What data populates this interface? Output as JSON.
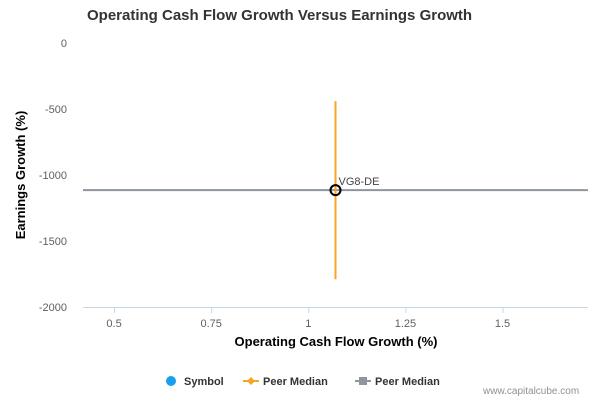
{
  "chart_data": {
    "type": "scatter",
    "title": "Operating Cash Flow Growth Versus Earnings Growth",
    "xlabel": "Operating Cash Flow Growth (%)",
    "ylabel": "Earnings Growth (%)",
    "xlim": [
      0.42,
      1.72
    ],
    "ylim": [
      -2000,
      0
    ],
    "x_ticks": [
      0.5,
      0.75,
      1,
      1.25,
      1.5
    ],
    "x_tick_labels": [
      "0.5",
      "0.75",
      "1",
      "1.25",
      "1.5"
    ],
    "y_ticks": [
      0,
      -500,
      -1000,
      -1500,
      -2000
    ],
    "y_tick_labels": [
      "0",
      "-500",
      "-1000",
      "-1500",
      "-2000"
    ],
    "grid": false,
    "legend_position": "bottom",
    "points": [
      {
        "label": "VG8-DE",
        "x": 1.07,
        "y": -1115
      }
    ],
    "peer_median_x": {
      "value": 1.07,
      "y_range": [
        -1790,
        -440
      ]
    },
    "peer_median_y": {
      "value": -1115,
      "x_range": [
        0.42,
        1.72
      ]
    },
    "legend": [
      {
        "label": "Symbol",
        "marker": "circle",
        "color": "#1a9ff0"
      },
      {
        "label": "Peer Median",
        "marker": "diamond",
        "color": "#f5a623"
      },
      {
        "label": "Peer Median",
        "marker": "square",
        "color": "#8f949d"
      }
    ],
    "colors": {
      "peer_median_x": "#f5a623",
      "peer_median_y": "#8f949d",
      "axis_line": "#c8d7e1",
      "point_stroke": "#000000"
    }
  },
  "watermark": "www.capitalcube.com"
}
